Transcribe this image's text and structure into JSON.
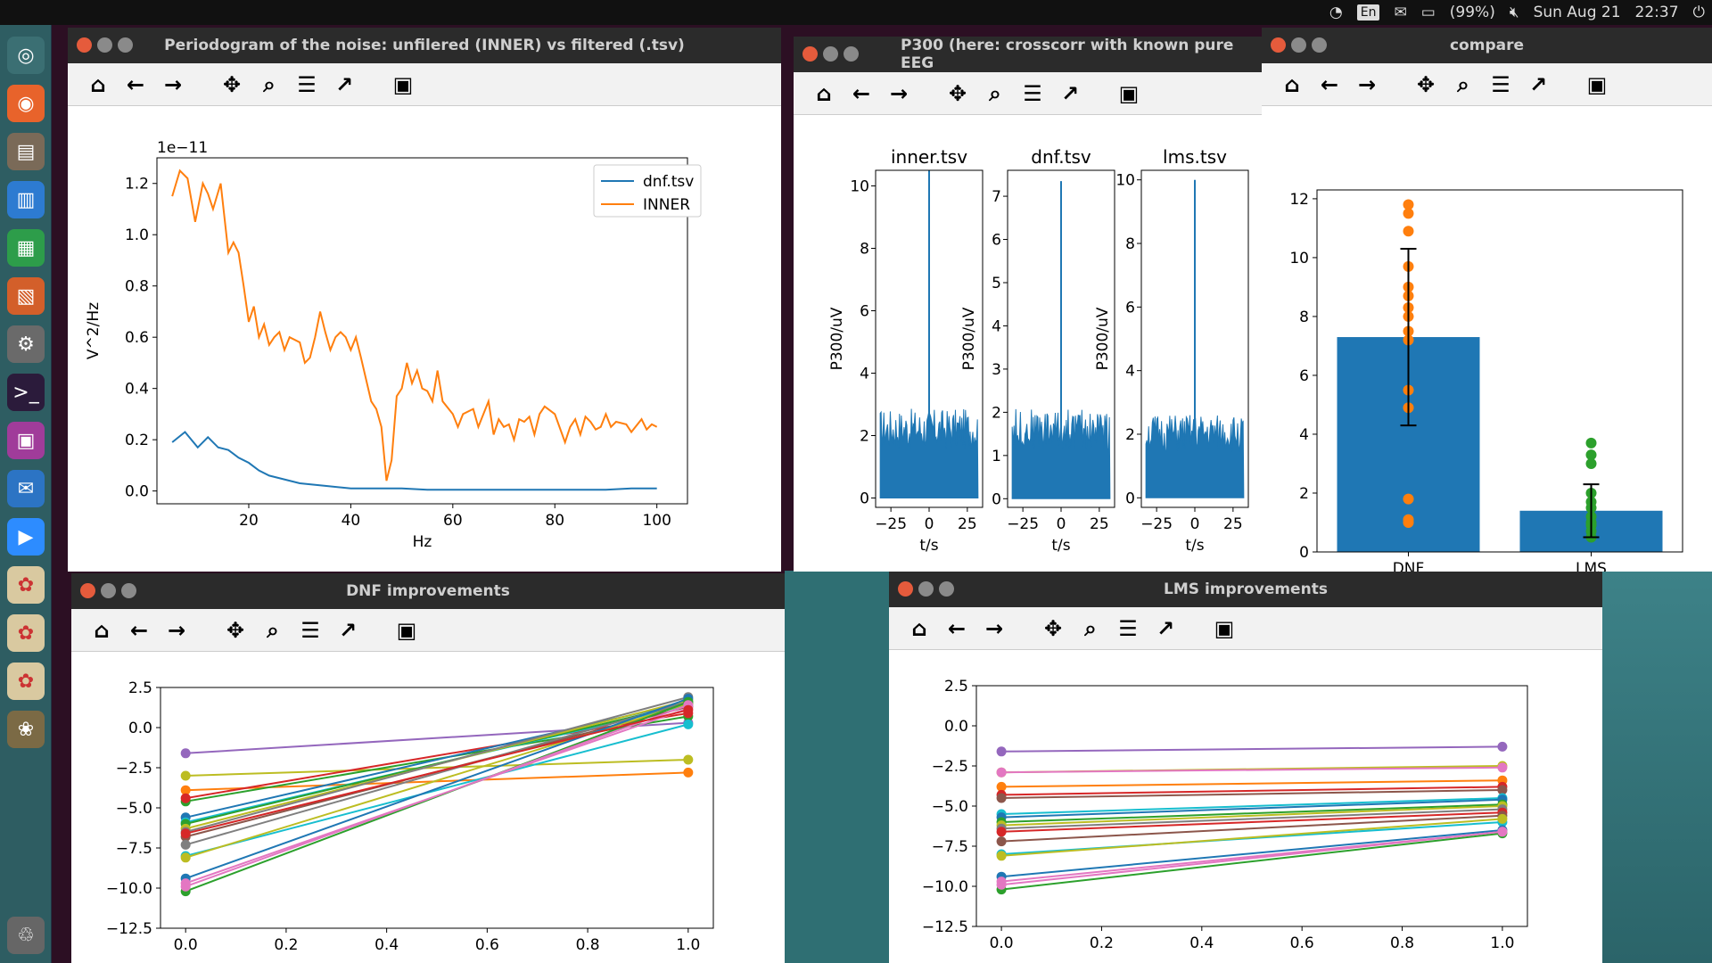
{
  "topbar": {
    "lang": "En",
    "battery": "(99%)",
    "date": "Sun Aug 21",
    "time": "22:37"
  },
  "launcher": {
    "icons": [
      "ubuntu-logo-icon",
      "firefox-icon",
      "files-icon",
      "writer-icon",
      "calc-icon",
      "impress-icon",
      "settings-icon",
      "terminal-icon",
      "software-icon",
      "thunderbird-icon",
      "zoom-icon",
      "pyplot-icon",
      "pyplot-icon",
      "pyplot-icon",
      "gimp-icon",
      "trash-icon"
    ]
  },
  "toolbar_icons": [
    "home-icon",
    "back-icon",
    "forward-icon",
    "pan-icon",
    "zoom-icon",
    "configure-subplots-icon",
    "edit-axis-icon",
    "save-icon"
  ],
  "windows": {
    "periodogram": {
      "title": "Periodogram of the noise: unfilered (INNER) vs filtered (.tsv)"
    },
    "p300": {
      "title": "P300 (here: crosscorr with known pure EEG"
    },
    "compare": {
      "title": "compare"
    },
    "dnf": {
      "title": "DNF improvements"
    },
    "lms": {
      "title": "LMS improvements"
    }
  },
  "chart_data": [
    {
      "type": "line",
      "xlabel": "Hz",
      "ylabel": "V^2/Hz",
      "offset_label": "1e−11",
      "xlim": [
        2,
        106
      ],
      "ylim": [
        -0.05,
        1.3
      ],
      "xticks": [
        "20",
        "40",
        "60",
        "80",
        "100"
      ],
      "yticks": [
        "0.0",
        "0.2",
        "0.4",
        "0.6",
        "0.8",
        "1.0",
        "1.2"
      ],
      "legend": [
        "dnf.tsv",
        "INNER"
      ],
      "series": [
        {
          "name": "dnf.tsv",
          "color": "#1f77b4",
          "x": [
            5,
            7.5,
            10,
            12,
            14,
            16,
            18,
            20,
            22,
            24,
            26,
            28,
            30,
            35,
            40,
            45,
            50,
            55,
            60,
            70,
            80,
            90,
            95,
            100
          ],
          "y": [
            0.19,
            0.23,
            0.17,
            0.21,
            0.17,
            0.16,
            0.13,
            0.11,
            0.08,
            0.06,
            0.05,
            0.04,
            0.03,
            0.02,
            0.01,
            0.01,
            0.01,
            0.005,
            0.005,
            0.005,
            0.005,
            0.005,
            0.01,
            0.01
          ]
        },
        {
          "name": "INNER",
          "color": "#ff7f0e",
          "x": [
            5,
            6.5,
            8,
            9.5,
            11,
            12,
            13,
            14.5,
            16,
            17,
            18,
            19,
            20,
            21,
            22,
            23,
            24,
            25,
            26,
            27,
            28,
            30,
            31,
            32,
            33,
            34,
            35,
            36,
            37,
            38,
            39,
            40,
            41,
            42,
            44,
            45,
            46,
            47,
            48,
            49,
            50,
            51,
            52,
            53,
            54,
            55,
            56,
            57,
            58,
            60,
            61,
            62,
            64,
            65,
            67,
            68,
            69,
            70,
            71,
            72,
            73,
            74,
            75,
            76,
            77,
            78,
            80,
            82,
            83,
            84,
            85,
            86,
            87,
            88,
            89,
            90,
            91,
            92,
            94,
            95,
            97,
            98,
            99,
            100
          ],
          "y": [
            1.15,
            1.25,
            1.22,
            1.05,
            1.2,
            1.16,
            1.1,
            1.2,
            0.93,
            0.97,
            0.93,
            0.8,
            0.66,
            0.72,
            0.6,
            0.65,
            0.57,
            0.6,
            0.62,
            0.55,
            0.6,
            0.58,
            0.5,
            0.52,
            0.6,
            0.7,
            0.62,
            0.55,
            0.6,
            0.62,
            0.6,
            0.55,
            0.6,
            0.52,
            0.35,
            0.32,
            0.25,
            0.04,
            0.12,
            0.37,
            0.4,
            0.5,
            0.42,
            0.47,
            0.4,
            0.39,
            0.35,
            0.47,
            0.35,
            0.3,
            0.25,
            0.3,
            0.32,
            0.25,
            0.35,
            0.22,
            0.28,
            0.25,
            0.26,
            0.2,
            0.28,
            0.27,
            0.29,
            0.22,
            0.3,
            0.33,
            0.3,
            0.19,
            0.25,
            0.28,
            0.22,
            0.29,
            0.27,
            0.24,
            0.25,
            0.3,
            0.25,
            0.27,
            0.26,
            0.23,
            0.28,
            0.24,
            0.26,
            0.25
          ]
        }
      ]
    },
    {
      "type": "bar",
      "title": "inner.tsv",
      "xlabel": "t/s",
      "ylabel": "P300/uV",
      "xticks": [
        "−25",
        "0",
        "25"
      ],
      "yticks": [
        "0",
        "2",
        "4",
        "6",
        "8",
        "10"
      ],
      "ylim": [
        -0.3,
        10.5
      ],
      "peak": 10.5,
      "floor": 2.2
    },
    {
      "type": "bar",
      "title": "dnf.tsv",
      "xlabel": "t/s",
      "ylabel": "P300/uV",
      "xticks": [
        "−25",
        "0",
        "25"
      ],
      "yticks": [
        "0",
        "1",
        "2",
        "3",
        "4",
        "5",
        "6",
        "7"
      ],
      "ylim": [
        -0.2,
        7.6
      ],
      "peak": 7.35,
      "floor": 1.6
    },
    {
      "type": "bar",
      "title": "lms.tsv",
      "xlabel": "t/s",
      "ylabel": "P300/uV",
      "xticks": [
        "−25",
        "0",
        "25"
      ],
      "yticks": [
        "0",
        "2",
        "4",
        "6",
        "8",
        "10"
      ],
      "ylim": [
        -0.3,
        10.3
      ],
      "peak": 10.0,
      "floor": 2.0
    },
    {
      "type": "bar",
      "categories": [
        "DNF",
        "LMS"
      ],
      "values": [
        7.3,
        1.4
      ],
      "errors": [
        3.0,
        0.9
      ],
      "ylim": [
        0,
        12.3
      ],
      "yticks": [
        "0",
        "2",
        "4",
        "6",
        "8",
        "10",
        "12"
      ],
      "points": [
        [
          11.8,
          11.5,
          10.9,
          9.7,
          9.0,
          8.7,
          8.3,
          8.0,
          7.5,
          7.2,
          5.5,
          4.9,
          1.8,
          1.1,
          1.0
        ],
        [
          3.7,
          3.3,
          3.0,
          2.0,
          1.7,
          1.5,
          1.2,
          1.0,
          0.9,
          0.7,
          0.5
        ]
      ]
    },
    {
      "type": "line",
      "title": "",
      "xlim": [
        -0.05,
        1.05
      ],
      "ylim": [
        -12.5,
        2.5
      ],
      "xticks": [
        "0.0",
        "0.2",
        "0.4",
        "0.6",
        "0.8",
        "1.0"
      ],
      "yticks": [
        "2.5",
        "0.0",
        "−2.5",
        "−5.0",
        "−7.5",
        "−10.0",
        "−12.5"
      ],
      "series": [
        {
          "y": [
            -1.6,
            0.3
          ],
          "color": "#9467bd"
        },
        {
          "y": [
            -3.0,
            -2.0
          ],
          "color": "#bcbd22"
        },
        {
          "y": [
            -3.9,
            -2.8
          ],
          "color": "#ff7f0e"
        },
        {
          "y": [
            -4.6,
            0.7
          ],
          "color": "#2ca02c"
        },
        {
          "y": [
            -4.4,
            0.9
          ],
          "color": "#d62728"
        },
        {
          "y": [
            -5.6,
            1.6
          ],
          "color": "#1f77b4"
        },
        {
          "y": [
            -5.9,
            1.4
          ],
          "color": "#17becf"
        },
        {
          "y": [
            -6.0,
            1.5
          ],
          "color": "#2ca02c"
        },
        {
          "y": [
            -6.3,
            1.7
          ],
          "color": "#bcbd22"
        },
        {
          "y": [
            -6.5,
            1.9
          ],
          "color": "#7f7f7f"
        },
        {
          "y": [
            -6.8,
            1.3
          ],
          "color": "#8c564b"
        },
        {
          "y": [
            -7.3,
            1.6
          ],
          "color": "#7f7f7f"
        },
        {
          "y": [
            -8.0,
            0.2
          ],
          "color": "#17becf"
        },
        {
          "y": [
            -8.1,
            1.5
          ],
          "color": "#bcbd22"
        },
        {
          "y": [
            -9.4,
            1.8
          ],
          "color": "#1f77b4"
        },
        {
          "y": [
            -9.7,
            1.2
          ],
          "color": "#e377c2"
        },
        {
          "y": [
            -10.2,
            1.6
          ],
          "color": "#2ca02c"
        },
        {
          "y": [
            -9.9,
            1.4
          ],
          "color": "#e377c2"
        },
        {
          "y": [
            -6.6,
            1.1
          ],
          "color": "#d62728"
        }
      ]
    },
    {
      "type": "line",
      "title": "",
      "xlim": [
        -0.05,
        1.05
      ],
      "ylim": [
        -12.5,
        2.5
      ],
      "xticks": [
        "0.0",
        "0.2",
        "0.4",
        "0.6",
        "0.8",
        "1.0"
      ],
      "yticks": [
        "2.5",
        "0.0",
        "−2.5",
        "−5.0",
        "−7.5",
        "−10.0",
        "−12.5"
      ],
      "series": [
        {
          "y": [
            -1.6,
            -1.3
          ],
          "color": "#9467bd"
        },
        {
          "y": [
            -2.9,
            -2.5
          ],
          "color": "#bcbd22"
        },
        {
          "y": [
            -2.9,
            -2.6
          ],
          "color": "#e377c2"
        },
        {
          "y": [
            -3.8,
            -3.4
          ],
          "color": "#ff7f0e"
        },
        {
          "y": [
            -4.3,
            -3.8
          ],
          "color": "#d62728"
        },
        {
          "y": [
            -4.5,
            -4.0
          ],
          "color": "#8c564b"
        },
        {
          "y": [
            -5.5,
            -4.5
          ],
          "color": "#17becf"
        },
        {
          "y": [
            -5.7,
            -4.6
          ],
          "color": "#1f77b4"
        },
        {
          "y": [
            -6.0,
            -4.9
          ],
          "color": "#2ca02c"
        },
        {
          "y": [
            -6.2,
            -5.0
          ],
          "color": "#bcbd22"
        },
        {
          "y": [
            -6.4,
            -5.2
          ],
          "color": "#7f7f7f"
        },
        {
          "y": [
            -6.6,
            -5.4
          ],
          "color": "#d62728"
        },
        {
          "y": [
            -7.2,
            -5.6
          ],
          "color": "#8c564b"
        },
        {
          "y": [
            -8.0,
            -6.0
          ],
          "color": "#17becf"
        },
        {
          "y": [
            -8.1,
            -5.8
          ],
          "color": "#bcbd22"
        },
        {
          "y": [
            -9.4,
            -6.5
          ],
          "color": "#1f77b4"
        },
        {
          "y": [
            -9.7,
            -6.6
          ],
          "color": "#e377c2"
        },
        {
          "y": [
            -10.2,
            -6.7
          ],
          "color": "#2ca02c"
        },
        {
          "y": [
            -9.9,
            -6.6
          ],
          "color": "#e377c2"
        }
      ]
    }
  ]
}
